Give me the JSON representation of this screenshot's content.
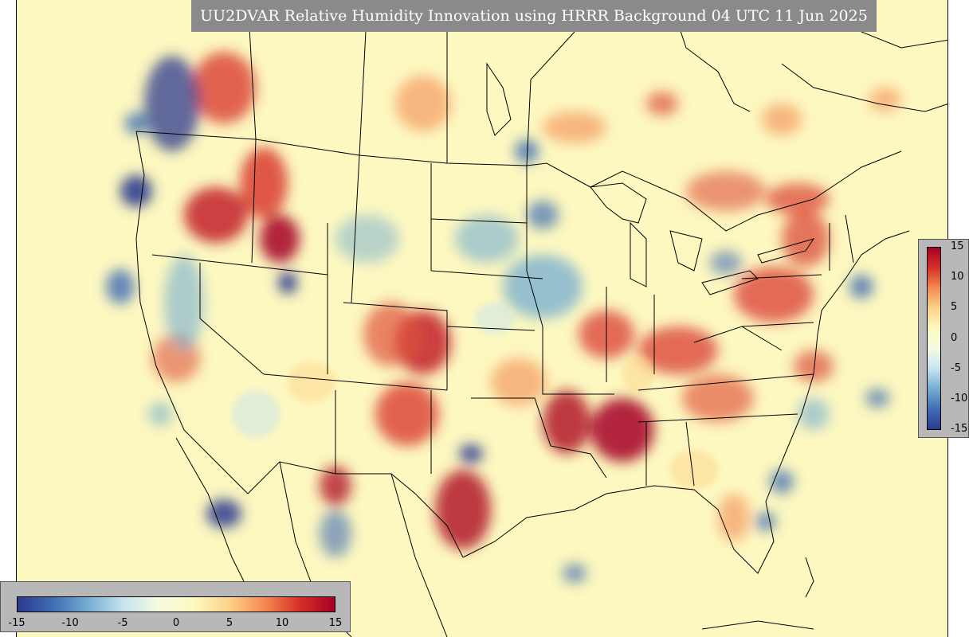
{
  "title": "UU2DVAR Relative Humidity Innovation using HRRR Background 04 UTC 11 Jun 2025",
  "colormap": {
    "name": "RdYlBu_r",
    "min": -15,
    "max": 15,
    "stops": [
      "#2b3a8f",
      "#3f6db4",
      "#74add1",
      "#c7e3f0",
      "#f5fbe0",
      "#fdf8c0",
      "#fdd38a",
      "#f48a52",
      "#d73027",
      "#a50026"
    ],
    "vertical_ticks": [
      "15",
      "10",
      "5",
      "0",
      "-5",
      "-10",
      "-15"
    ],
    "horizontal_ticks": [
      "-15",
      "-10",
      "-5",
      "0",
      "5",
      "10",
      "15"
    ]
  },
  "colors": {
    "background_field": "#fdf8c0",
    "title_bar": "#8a8a8a",
    "colorbar_panel": "#b8b8b8"
  }
}
